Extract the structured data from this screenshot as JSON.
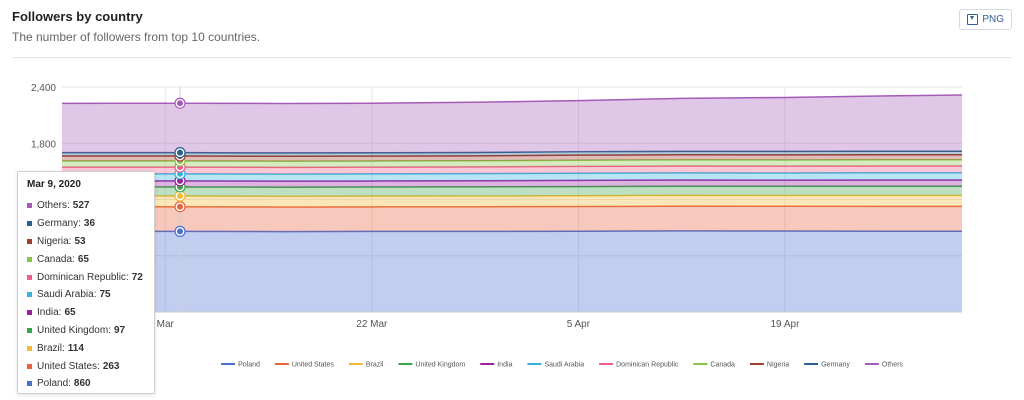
{
  "header": {
    "title": "Followers by country",
    "subtitle": "The number of followers from top 10 countries.",
    "png_label": "PNG"
  },
  "chart_data": {
    "type": "area",
    "stacked": true,
    "ylim": [
      0,
      2400
    ],
    "yticks": [
      {
        "value": 2400,
        "label": "2,400"
      },
      {
        "value": 1800,
        "label": "1,800"
      }
    ],
    "xlim": [
      "2020-03-01",
      "2020-05-01"
    ],
    "xticks": [
      {
        "date": "2020-03-08",
        "label": "Mar"
      },
      {
        "date": "2020-03-22",
        "label": "22 Mar"
      },
      {
        "date": "2020-04-05",
        "label": "5 Apr"
      },
      {
        "date": "2020-04-19",
        "label": "19 Apr"
      }
    ],
    "x": [
      "2020-03-01",
      "2020-03-09",
      "2020-03-16",
      "2020-03-22",
      "2020-03-29",
      "2020-04-05",
      "2020-04-12",
      "2020-04-19",
      "2020-04-26",
      "2020-05-01"
    ],
    "series": [
      {
        "name": "Poland",
        "color": "#4a6fcf",
        "values": [
          860,
          860,
          858,
          860,
          860,
          862,
          865,
          864,
          862,
          862
        ]
      },
      {
        "name": "United States",
        "color": "#e8623a",
        "values": [
          263,
          263,
          262,
          262,
          263,
          263,
          264,
          264,
          265,
          265
        ]
      },
      {
        "name": "Brazil",
        "color": "#f5b938",
        "values": [
          114,
          114,
          114,
          114,
          114,
          115,
          115,
          115,
          116,
          116
        ]
      },
      {
        "name": "United Kingdom",
        "color": "#3aa54a",
        "values": [
          97,
          97,
          97,
          97,
          98,
          98,
          98,
          98,
          99,
          99
        ]
      },
      {
        "name": "India",
        "color": "#9b1fa0",
        "values": [
          65,
          65,
          65,
          65,
          65,
          66,
          66,
          66,
          66,
          66
        ]
      },
      {
        "name": "Saudi Arabia",
        "color": "#34b5e0",
        "values": [
          75,
          75,
          75,
          75,
          76,
          76,
          76,
          76,
          77,
          77
        ]
      },
      {
        "name": "Dominican Republic",
        "color": "#ef5d8a",
        "values": [
          72,
          72,
          72,
          72,
          72,
          73,
          73,
          73,
          73,
          73
        ]
      },
      {
        "name": "Canada",
        "color": "#8bc34a",
        "values": [
          65,
          65,
          65,
          65,
          65,
          66,
          66,
          66,
          66,
          66
        ]
      },
      {
        "name": "Nigeria",
        "color": "#a33d2e",
        "values": [
          53,
          53,
          53,
          53,
          53,
          54,
          54,
          54,
          54,
          54
        ]
      },
      {
        "name": "Germany",
        "color": "#2c5f8a",
        "values": [
          36,
          36,
          36,
          36,
          36,
          37,
          37,
          37,
          37,
          37
        ]
      },
      {
        "name": "Others",
        "color": "#a45cb8",
        "values": [
          525,
          527,
          527,
          528,
          535,
          545,
          565,
          575,
          590,
          600
        ]
      }
    ],
    "grid": true,
    "legend": "bottom"
  },
  "tooltip": {
    "date": "Mar 9, 2020",
    "hover_x": "2020-03-09",
    "rows": [
      {
        "name": "Others",
        "value": "527",
        "color": "#a45cb8"
      },
      {
        "name": "Germany",
        "value": "36",
        "color": "#2c5f8a"
      },
      {
        "name": "Nigeria",
        "value": "53",
        "color": "#a33d2e"
      },
      {
        "name": "Canada",
        "value": "65",
        "color": "#8bc34a"
      },
      {
        "name": "Dominican Republic",
        "value": "72",
        "color": "#ef5d8a"
      },
      {
        "name": "Saudi Arabia",
        "value": "75",
        "color": "#34b5e0"
      },
      {
        "name": "India",
        "value": "65",
        "color": "#9b1fa0"
      },
      {
        "name": "United Kingdom",
        "value": "97",
        "color": "#3aa54a"
      },
      {
        "name": "Brazil",
        "value": "114",
        "color": "#f5b938"
      },
      {
        "name": "United States",
        "value": "263",
        "color": "#e8623a"
      },
      {
        "name": "Poland",
        "value": "860",
        "color": "#4a6fcf"
      }
    ]
  }
}
